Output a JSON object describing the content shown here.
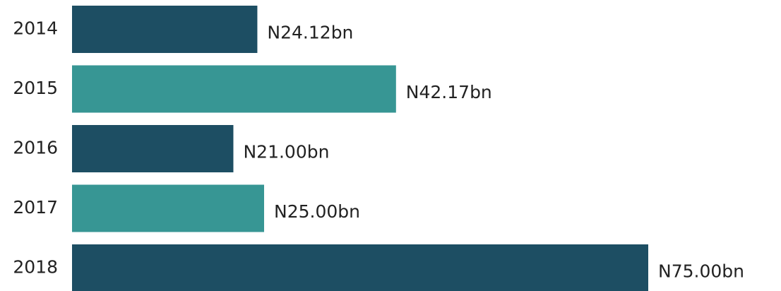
{
  "chart_data": {
    "type": "barh",
    "categories": [
      "2014",
      "2015",
      "2016",
      "2017",
      "2018"
    ],
    "values": [
      24.12,
      42.17,
      21.0,
      25.0,
      75.0
    ],
    "value_labels": [
      "N24.12bn",
      "N42.17bn",
      "N21.00bn",
      "N25.00bn",
      "N75.00bn"
    ],
    "colors": [
      "#1d4e63",
      "#379694",
      "#1d4e63",
      "#379694",
      "#1d4e63"
    ]
  }
}
